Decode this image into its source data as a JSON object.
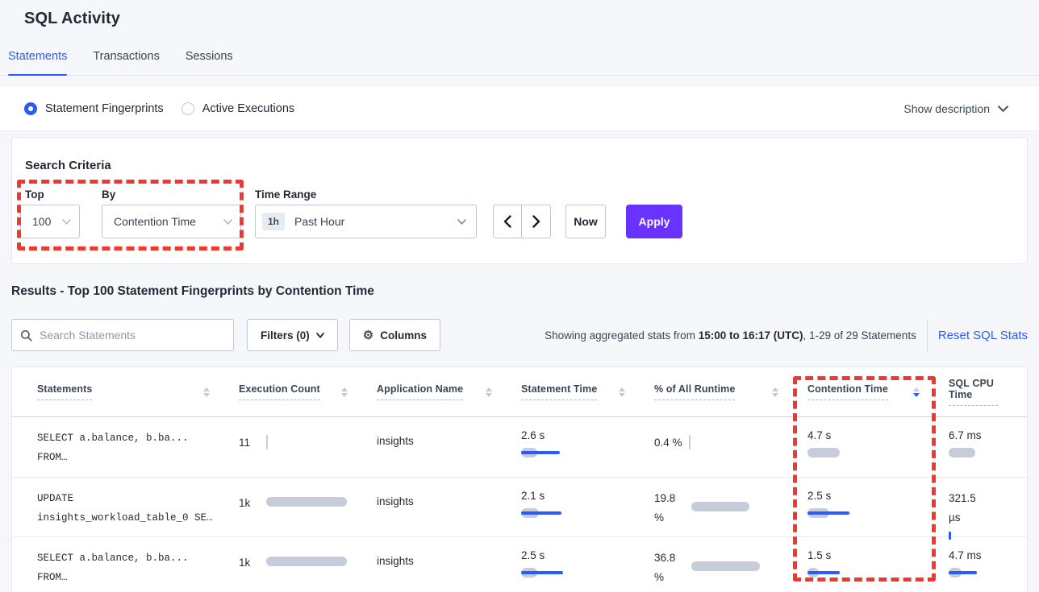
{
  "page": {
    "title": "SQL Activity"
  },
  "tabs": [
    {
      "label": "Statements",
      "active": true
    },
    {
      "label": "Transactions",
      "active": false
    },
    {
      "label": "Sessions",
      "active": false
    }
  ],
  "view_toggle": {
    "options": [
      {
        "label": "Statement Fingerprints",
        "selected": true
      },
      {
        "label": "Active Executions",
        "selected": false
      }
    ],
    "show_description": "Show description"
  },
  "search_criteria": {
    "title": "Search Criteria",
    "top": {
      "label": "Top",
      "value": "100"
    },
    "by": {
      "label": "By",
      "value": "Contention Time"
    },
    "time_range": {
      "label": "Time Range",
      "badge": "1h",
      "value": "Past Hour"
    },
    "now_label": "Now",
    "apply_label": "Apply"
  },
  "results": {
    "heading": "Results - Top 100 Statement Fingerprints by Contention Time",
    "search_placeholder": "Search Statements",
    "filters_label": "Filters (0)",
    "columns_label": "Columns",
    "stats_prefix": "Showing aggregated stats from ",
    "stats_range": "15:00 to 16:17 (UTC)",
    "stats_suffix": ", 1-29 of 29 Statements",
    "reset_label": "Reset SQL Stats"
  },
  "table": {
    "columns": [
      {
        "label": "Statements",
        "sort": "none"
      },
      {
        "label": "Execution Count",
        "sort": "none"
      },
      {
        "label": "Application Name",
        "sort": "none"
      },
      {
        "label": "Statement Time",
        "sort": "none"
      },
      {
        "label": "% of All Runtime",
        "sort": "none"
      },
      {
        "label": "Contention Time",
        "sort": "desc"
      },
      {
        "label": "SQL CPU Time",
        "sort": "hidden"
      }
    ],
    "rows": [
      {
        "statement": [
          "SELECT a.balance, b.ba...",
          "FROM…"
        ],
        "execution_count": {
          "label": "11",
          "layout": "inline",
          "tick": "gray"
        },
        "application_name": "insights",
        "statement_time": {
          "label": "2.6 s",
          "layout": "stack",
          "gray": 20,
          "blue": 48
        },
        "pct_runtime": {
          "label": "0.4 %",
          "layout": "inline",
          "tick": "gray"
        },
        "contention_time": {
          "label": "4.7 s",
          "layout": "stack",
          "gray": 40
        },
        "sql_cpu_time": {
          "label": "6.7 ms",
          "layout": "stack",
          "gray": 33
        }
      },
      {
        "statement": [
          "UPDATE",
          "insights_workload_table_0 SE…"
        ],
        "execution_count": {
          "label": "1k",
          "layout": "inline",
          "gray": 100
        },
        "application_name": "insights",
        "statement_time": {
          "label": "2.1 s",
          "layout": "stack",
          "gray": 22,
          "blue": 50
        },
        "pct_runtime": {
          "label": "19.8 %",
          "layout": "side",
          "gray": 72
        },
        "contention_time": {
          "label": "2.5 s",
          "layout": "stack",
          "gray": 27,
          "blue": 52
        },
        "sql_cpu_time": {
          "label": "321.5 µs",
          "layout": "wrapstack",
          "tick": "blue"
        }
      },
      {
        "statement": [
          "SELECT a.balance, b.ba...",
          "FROM…"
        ],
        "execution_count": {
          "label": "1k",
          "layout": "inline",
          "gray": 100
        },
        "application_name": "insights",
        "statement_time": {
          "label": "2.5 s",
          "layout": "stack",
          "gray": 20,
          "blue": 52
        },
        "pct_runtime": {
          "label": "36.8 %",
          "layout": "side",
          "gray": 85
        },
        "contention_time": {
          "label": "1.5 s",
          "layout": "stack",
          "gray": 14,
          "blue": 40
        },
        "sql_cpu_time": {
          "label": "4.7 ms",
          "layout": "stack",
          "gray": 16,
          "blue": 35
        }
      }
    ]
  },
  "colors": {
    "accent_blue": "#2b5bfa",
    "accent_purple": "#6933ff",
    "bar_gray": "#c6ccda",
    "annotation_red": "#f2382e",
    "page_bg": "#f5f7fa"
  }
}
